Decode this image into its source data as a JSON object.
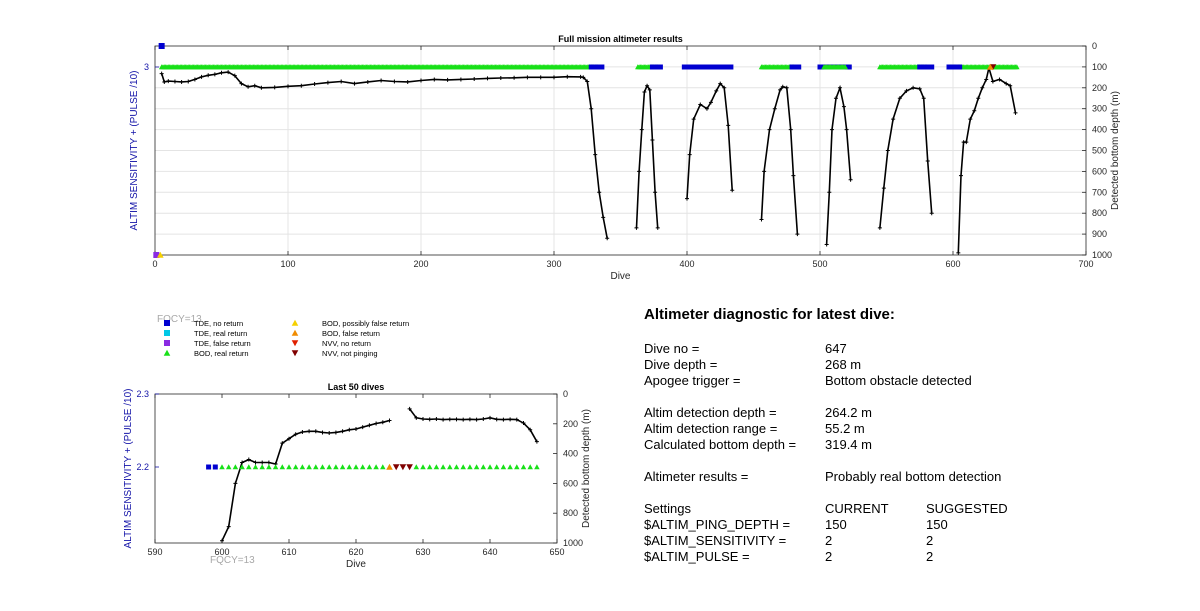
{
  "chart_data": [
    {
      "id": "full",
      "type": "line",
      "title": "Full mission altimeter results",
      "xlabel": "Dive",
      "ylabel_left": "ALTIM SENSITIVITY + (PULSE /10)",
      "ylabel_right": "Detected bottom depth (m)",
      "xlim": [
        0,
        700
      ],
      "xticks": [
        0,
        100,
        200,
        300,
        400,
        500,
        600,
        700
      ],
      "ylim_right": [
        0,
        1000
      ],
      "yticks_right": [
        0,
        100,
        200,
        300,
        400,
        500,
        600,
        700,
        800,
        900,
        1000
      ],
      "yticks_left": [
        3
      ],
      "grid": true,
      "depth_series": {
        "name": "Detected bottom depth",
        "color": "#000000",
        "segments": [
          [
            [
              5,
              132
            ],
            [
              7,
              172
            ],
            [
              10,
              168
            ],
            [
              15,
              170
            ],
            [
              20,
              172
            ],
            [
              25,
              170
            ],
            [
              30,
              160
            ],
            [
              35,
              148
            ],
            [
              40,
              140
            ],
            [
              45,
              136
            ],
            [
              50,
              128
            ],
            [
              55,
              125
            ],
            [
              60,
              142
            ],
            [
              65,
              180
            ],
            [
              70,
              195
            ],
            [
              75,
              190
            ],
            [
              80,
              200
            ],
            [
              90,
              198
            ],
            [
              100,
              193
            ],
            [
              110,
              190
            ],
            [
              120,
              182
            ],
            [
              130,
              175
            ],
            [
              140,
              170
            ],
            [
              150,
              180
            ],
            [
              160,
              172
            ],
            [
              170,
              165
            ],
            [
              180,
              170
            ],
            [
              190,
              172
            ],
            [
              200,
              165
            ],
            [
              210,
              160
            ],
            [
              220,
              162
            ],
            [
              230,
              160
            ],
            [
              240,
              158
            ],
            [
              250,
              155
            ],
            [
              260,
              153
            ],
            [
              270,
              152
            ],
            [
              280,
              150
            ],
            [
              290,
              150
            ],
            [
              300,
              150
            ],
            [
              310,
              147
            ],
            [
              320,
              148
            ],
            [
              322,
              150
            ],
            [
              325,
              170
            ],
            [
              328,
              300
            ],
            [
              331,
              520
            ],
            [
              334,
              700
            ],
            [
              337,
              820
            ],
            [
              340,
              920
            ]
          ],
          [
            [
              362,
              870
            ],
            [
              364,
              600
            ],
            [
              366,
              400
            ],
            [
              368,
              220
            ],
            [
              370,
              190
            ],
            [
              372,
              210
            ],
            [
              374,
              450
            ],
            [
              376,
              700
            ],
            [
              378,
              870
            ]
          ],
          [
            [
              400,
              730
            ],
            [
              402,
              520
            ],
            [
              405,
              350
            ],
            [
              410,
              280
            ],
            [
              415,
              300
            ],
            [
              418,
              270
            ],
            [
              422,
              215
            ],
            [
              425,
              180
            ],
            [
              428,
              200
            ],
            [
              431,
              380
            ],
            [
              434,
              690
            ]
          ],
          [
            [
              456,
              830
            ],
            [
              458,
              600
            ],
            [
              462,
              400
            ],
            [
              466,
              300
            ],
            [
              470,
              210
            ],
            [
              472,
              195
            ],
            [
              475,
              200
            ],
            [
              478,
              400
            ],
            [
              480,
              620
            ],
            [
              483,
              900
            ]
          ],
          [
            [
              505,
              950
            ],
            [
              507,
              700
            ],
            [
              509,
              400
            ],
            [
              512,
              250
            ],
            [
              515,
              200
            ],
            [
              518,
              290
            ],
            [
              520,
              400
            ],
            [
              523,
              640
            ]
          ],
          [
            [
              545,
              870
            ],
            [
              548,
              680
            ],
            [
              551,
              500
            ],
            [
              555,
              350
            ],
            [
              560,
              250
            ],
            [
              565,
              215
            ],
            [
              570,
              200
            ],
            [
              575,
              205
            ],
            [
              578,
              250
            ],
            [
              581,
              550
            ],
            [
              584,
              800
            ]
          ],
          [
            [
              604,
              990
            ],
            [
              606,
              620
            ],
            [
              608,
              460
            ],
            [
              610,
              460
            ],
            [
              613,
              350
            ],
            [
              616,
              310
            ],
            [
              619,
              250
            ],
            [
              622,
              200
            ],
            [
              625,
              160
            ],
            [
              627,
              105
            ],
            [
              630,
              170
            ],
            [
              635,
              160
            ],
            [
              640,
              180
            ],
            [
              643,
              190
            ],
            [
              647,
              320
            ]
          ]
        ]
      },
      "flag_row": {
        "left_value": 3,
        "right_depth": 900
      },
      "flag_segments": [
        {
          "from": 5,
          "to": 333,
          "code": "BOD, real return"
        },
        {
          "from": 328,
          "to": 336,
          "code": "TDE, no return"
        },
        {
          "from": 363,
          "to": 378,
          "code": "BOD, real return"
        },
        {
          "from": 374,
          "to": 380,
          "code": "TDE, no return"
        },
        {
          "from": 398,
          "to": 433,
          "code": "TDE, no return"
        },
        {
          "from": 456,
          "to": 480,
          "code": "BOD, real return"
        },
        {
          "from": 479,
          "to": 484,
          "code": "TDE, no return"
        },
        {
          "from": 500,
          "to": 522,
          "code": "TDE, no return"
        },
        {
          "from": 503,
          "to": 519,
          "code": "BOD, real return"
        },
        {
          "from": 545,
          "to": 580,
          "code": "BOD, real return"
        },
        {
          "from": 575,
          "to": 584,
          "code": "TDE, no return"
        },
        {
          "from": 597,
          "to": 648,
          "code": "BOD, real return"
        },
        {
          "from": 597,
          "to": 605,
          "code": "TDE, no return"
        }
      ],
      "flag_points": [
        {
          "x": 630,
          "code": "NVV, not pinging"
        },
        {
          "x": 628,
          "code": "BOD, false return"
        }
      ],
      "outliers": [
        {
          "x": 5,
          "depth": 0,
          "code": "TDE, no return"
        },
        {
          "x": 1,
          "depth": 1000,
          "code": "TDE, false return"
        },
        {
          "x": 4,
          "depth": 1000,
          "code": "BOD, possibly false return"
        }
      ]
    },
    {
      "id": "last50",
      "type": "line",
      "title": "Last 50 dives",
      "xlabel": "Dive",
      "ylabel_left": "ALTIM SENSITIVITY + (PULSE /10)",
      "ylabel_right": "Detected bottom depth (m)",
      "xlim": [
        590,
        650
      ],
      "xticks": [
        590,
        600,
        610,
        620,
        630,
        640,
        650
      ],
      "ylim_right": [
        0,
        1000
      ],
      "yticks_right": [
        0,
        200,
        400,
        600,
        800,
        1000
      ],
      "ylim_left": [
        2.1,
        2.3
      ],
      "yticks_left": [
        2.2,
        2.3
      ],
      "grid": false,
      "depth_series": {
        "name": "Detected bottom depth",
        "color": "#000000",
        "segments": [
          [
            [
              600,
              985
            ],
            [
              601,
              890
            ],
            [
              602,
              600
            ],
            [
              603,
              460
            ],
            [
              604,
              440
            ],
            [
              605,
              460
            ],
            [
              606,
              460
            ],
            [
              607,
              460
            ],
            [
              608,
              470
            ],
            [
              609,
              330
            ],
            [
              610,
              300
            ],
            [
              611,
              270
            ],
            [
              612,
              255
            ],
            [
              613,
              250
            ],
            [
              614,
              250
            ],
            [
              615,
              258
            ],
            [
              616,
              262
            ],
            [
              617,
              258
            ],
            [
              618,
              250
            ],
            [
              619,
              240
            ],
            [
              620,
              235
            ],
            [
              621,
              222
            ],
            [
              622,
              210
            ],
            [
              623,
              198
            ],
            [
              624,
              190
            ],
            [
              625,
              178
            ]
          ],
          [
            [
              628,
              100
            ],
            [
              629,
              160
            ],
            [
              630,
              168
            ],
            [
              631,
              170
            ],
            [
              632,
              168
            ],
            [
              633,
              172
            ],
            [
              634,
              170
            ],
            [
              635,
              170
            ],
            [
              636,
              172
            ],
            [
              637,
              170
            ],
            [
              638,
              172
            ],
            [
              639,
              168
            ],
            [
              640,
              160
            ],
            [
              641,
              170
            ],
            [
              642,
              172
            ],
            [
              643,
              170
            ],
            [
              644,
              172
            ],
            [
              645,
              195
            ],
            [
              646,
              240
            ],
            [
              647,
              320
            ]
          ]
        ]
      },
      "flag_row": {
        "left_value": 2.2
      },
      "flag_segments": [
        {
          "from": 598,
          "to": 599,
          "code": "TDE, no return"
        },
        {
          "from": 600,
          "to": 624,
          "code": "BOD, real return"
        },
        {
          "from": 629,
          "to": 647,
          "code": "BOD, real return"
        }
      ],
      "flag_points": [
        {
          "x": 625,
          "code": "BOD, false return"
        },
        {
          "x": 626,
          "code": "NVV, not pinging"
        },
        {
          "x": 627,
          "code": "NVV, not pinging"
        },
        {
          "x": 628,
          "code": "NVV, not pinging"
        }
      ],
      "fqcy_label": "FQCY=13"
    }
  ],
  "legend": {
    "fqcy_label": "FQCY=13",
    "items": [
      {
        "label": "TDE, no return",
        "shape": "square",
        "color": "#0000d0"
      },
      {
        "label": "TDE, real return",
        "shape": "square",
        "color": "#00c8e6"
      },
      {
        "label": "TDE, false return",
        "shape": "square",
        "color": "#8a2be2"
      },
      {
        "label": "BOD, real return",
        "shape": "triangle-up",
        "color": "#18e018"
      },
      {
        "label": "BOD, possibly false return",
        "shape": "triangle-up",
        "color": "#f5d000"
      },
      {
        "label": "BOD, false return",
        "shape": "triangle-up",
        "color": "#f08c00"
      },
      {
        "label": "NVV, no return",
        "shape": "triangle-down",
        "color": "#e02000"
      },
      {
        "label": "NVV, not pinging",
        "shape": "triangle-down",
        "color": "#800000"
      }
    ]
  },
  "colors": {
    "axis_label": "#1414a8",
    "fqcy": "#a8a8a8",
    "line": "#000000"
  },
  "diagnostic": {
    "title": "Altimeter diagnostic for latest dive:",
    "dive_no_label": "Dive no =",
    "dive_no": "647",
    "dive_depth_label": "Dive depth =",
    "dive_depth": "268 m",
    "apogee_label": "Apogee trigger =",
    "apogee": "Bottom obstacle detected",
    "altim_depth_label": "Altim detection depth =",
    "altim_depth": "264.2 m",
    "altim_range_label": "Altim detection range =",
    "altim_range": "55.2 m",
    "calc_depth_label": "Calculated bottom depth =",
    "calc_depth": "319.4 m",
    "results_label": "Altimeter results =",
    "results": "Probably real bottom detection",
    "settings": {
      "header": [
        "Settings",
        "CURRENT",
        "SUGGESTED"
      ],
      "rows": [
        [
          "$ALTIM_PING_DEPTH =",
          "150",
          "150"
        ],
        [
          "$ALTIM_SENSITIVITY =",
          "2",
          "2"
        ],
        [
          "$ALTIM_PULSE =",
          "2",
          "2"
        ]
      ]
    }
  }
}
